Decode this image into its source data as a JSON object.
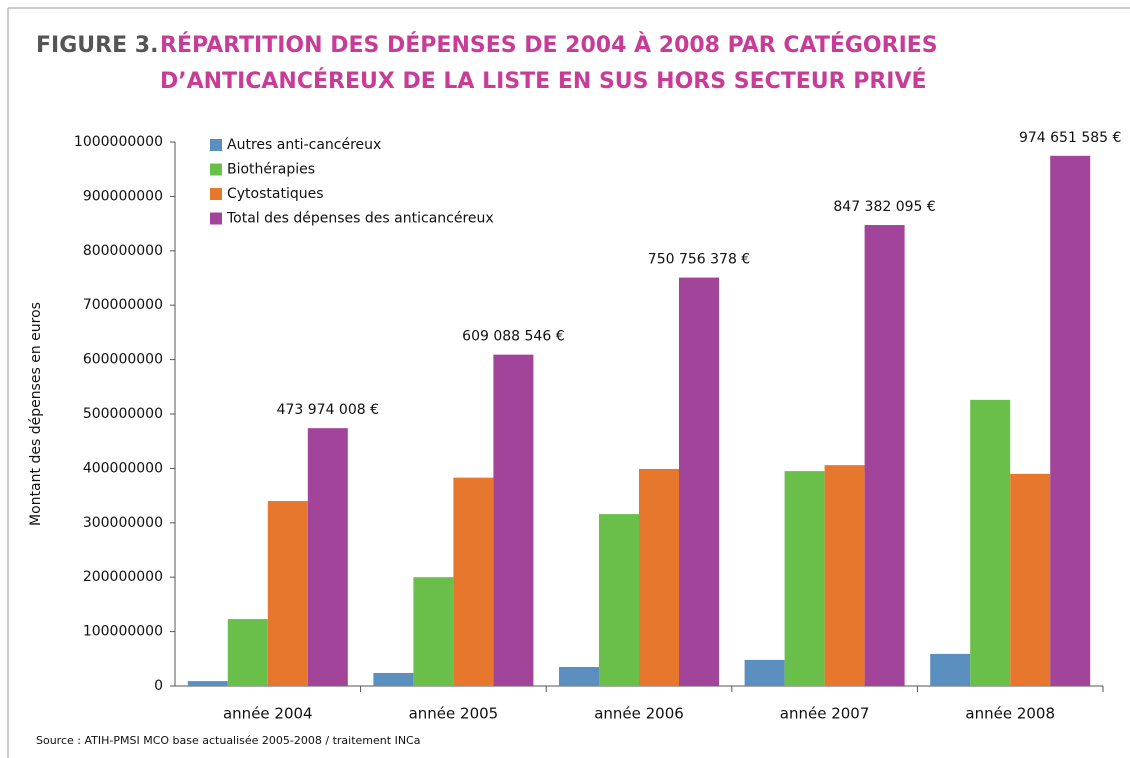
{
  "chart_data": {
    "type": "bar",
    "figure_label": "FIGURE 3.",
    "title_lines": [
      "RÉPARTITION DES DÉPENSES DE 2004 À 2008 PAR CATÉGORIES",
      "D’ANTICANCÉREUX DE LA LISTE EN SUS HORS SECTEUR PRIVÉ"
    ],
    "y_label": "Montant des dépenses en euros",
    "source": "Source : ATIH-PMSI MCO base actualisée 2005-2008 / traitement INCa",
    "categories": [
      "année 2004",
      "année 2005",
      "année 2006",
      "année 2007",
      "année 2008"
    ],
    "series": [
      {
        "name": "Autres anti-cancéreux",
        "color": "#5b8fbf",
        "values": [
          9000000,
          24000000,
          35000000,
          48000000,
          59000000
        ]
      },
      {
        "name": "Biothérapies",
        "color": "#6abf4b",
        "values": [
          123000000,
          200000000,
          316000000,
          395000000,
          526000000
        ]
      },
      {
        "name": "Cytostatiques",
        "color": "#e8772e",
        "values": [
          340000000,
          383000000,
          399000000,
          406000000,
          390000000
        ]
      },
      {
        "name": "Total des dépenses des anticancéreux",
        "color": "#a3449b",
        "values": [
          473974008,
          609088546,
          750756378,
          847382095,
          974651585
        ],
        "value_labels": [
          "473 974 008 €",
          "609 088 546 €",
          "750 756 378 €",
          "847 382 095 €",
          "974 651 585 €"
        ]
      }
    ],
    "ylim": [
      0,
      1000000000
    ],
    "yticks": [
      0,
      100000000,
      200000000,
      300000000,
      400000000,
      500000000,
      600000000,
      700000000,
      800000000,
      900000000,
      1000000000
    ],
    "legend": "top-left"
  }
}
